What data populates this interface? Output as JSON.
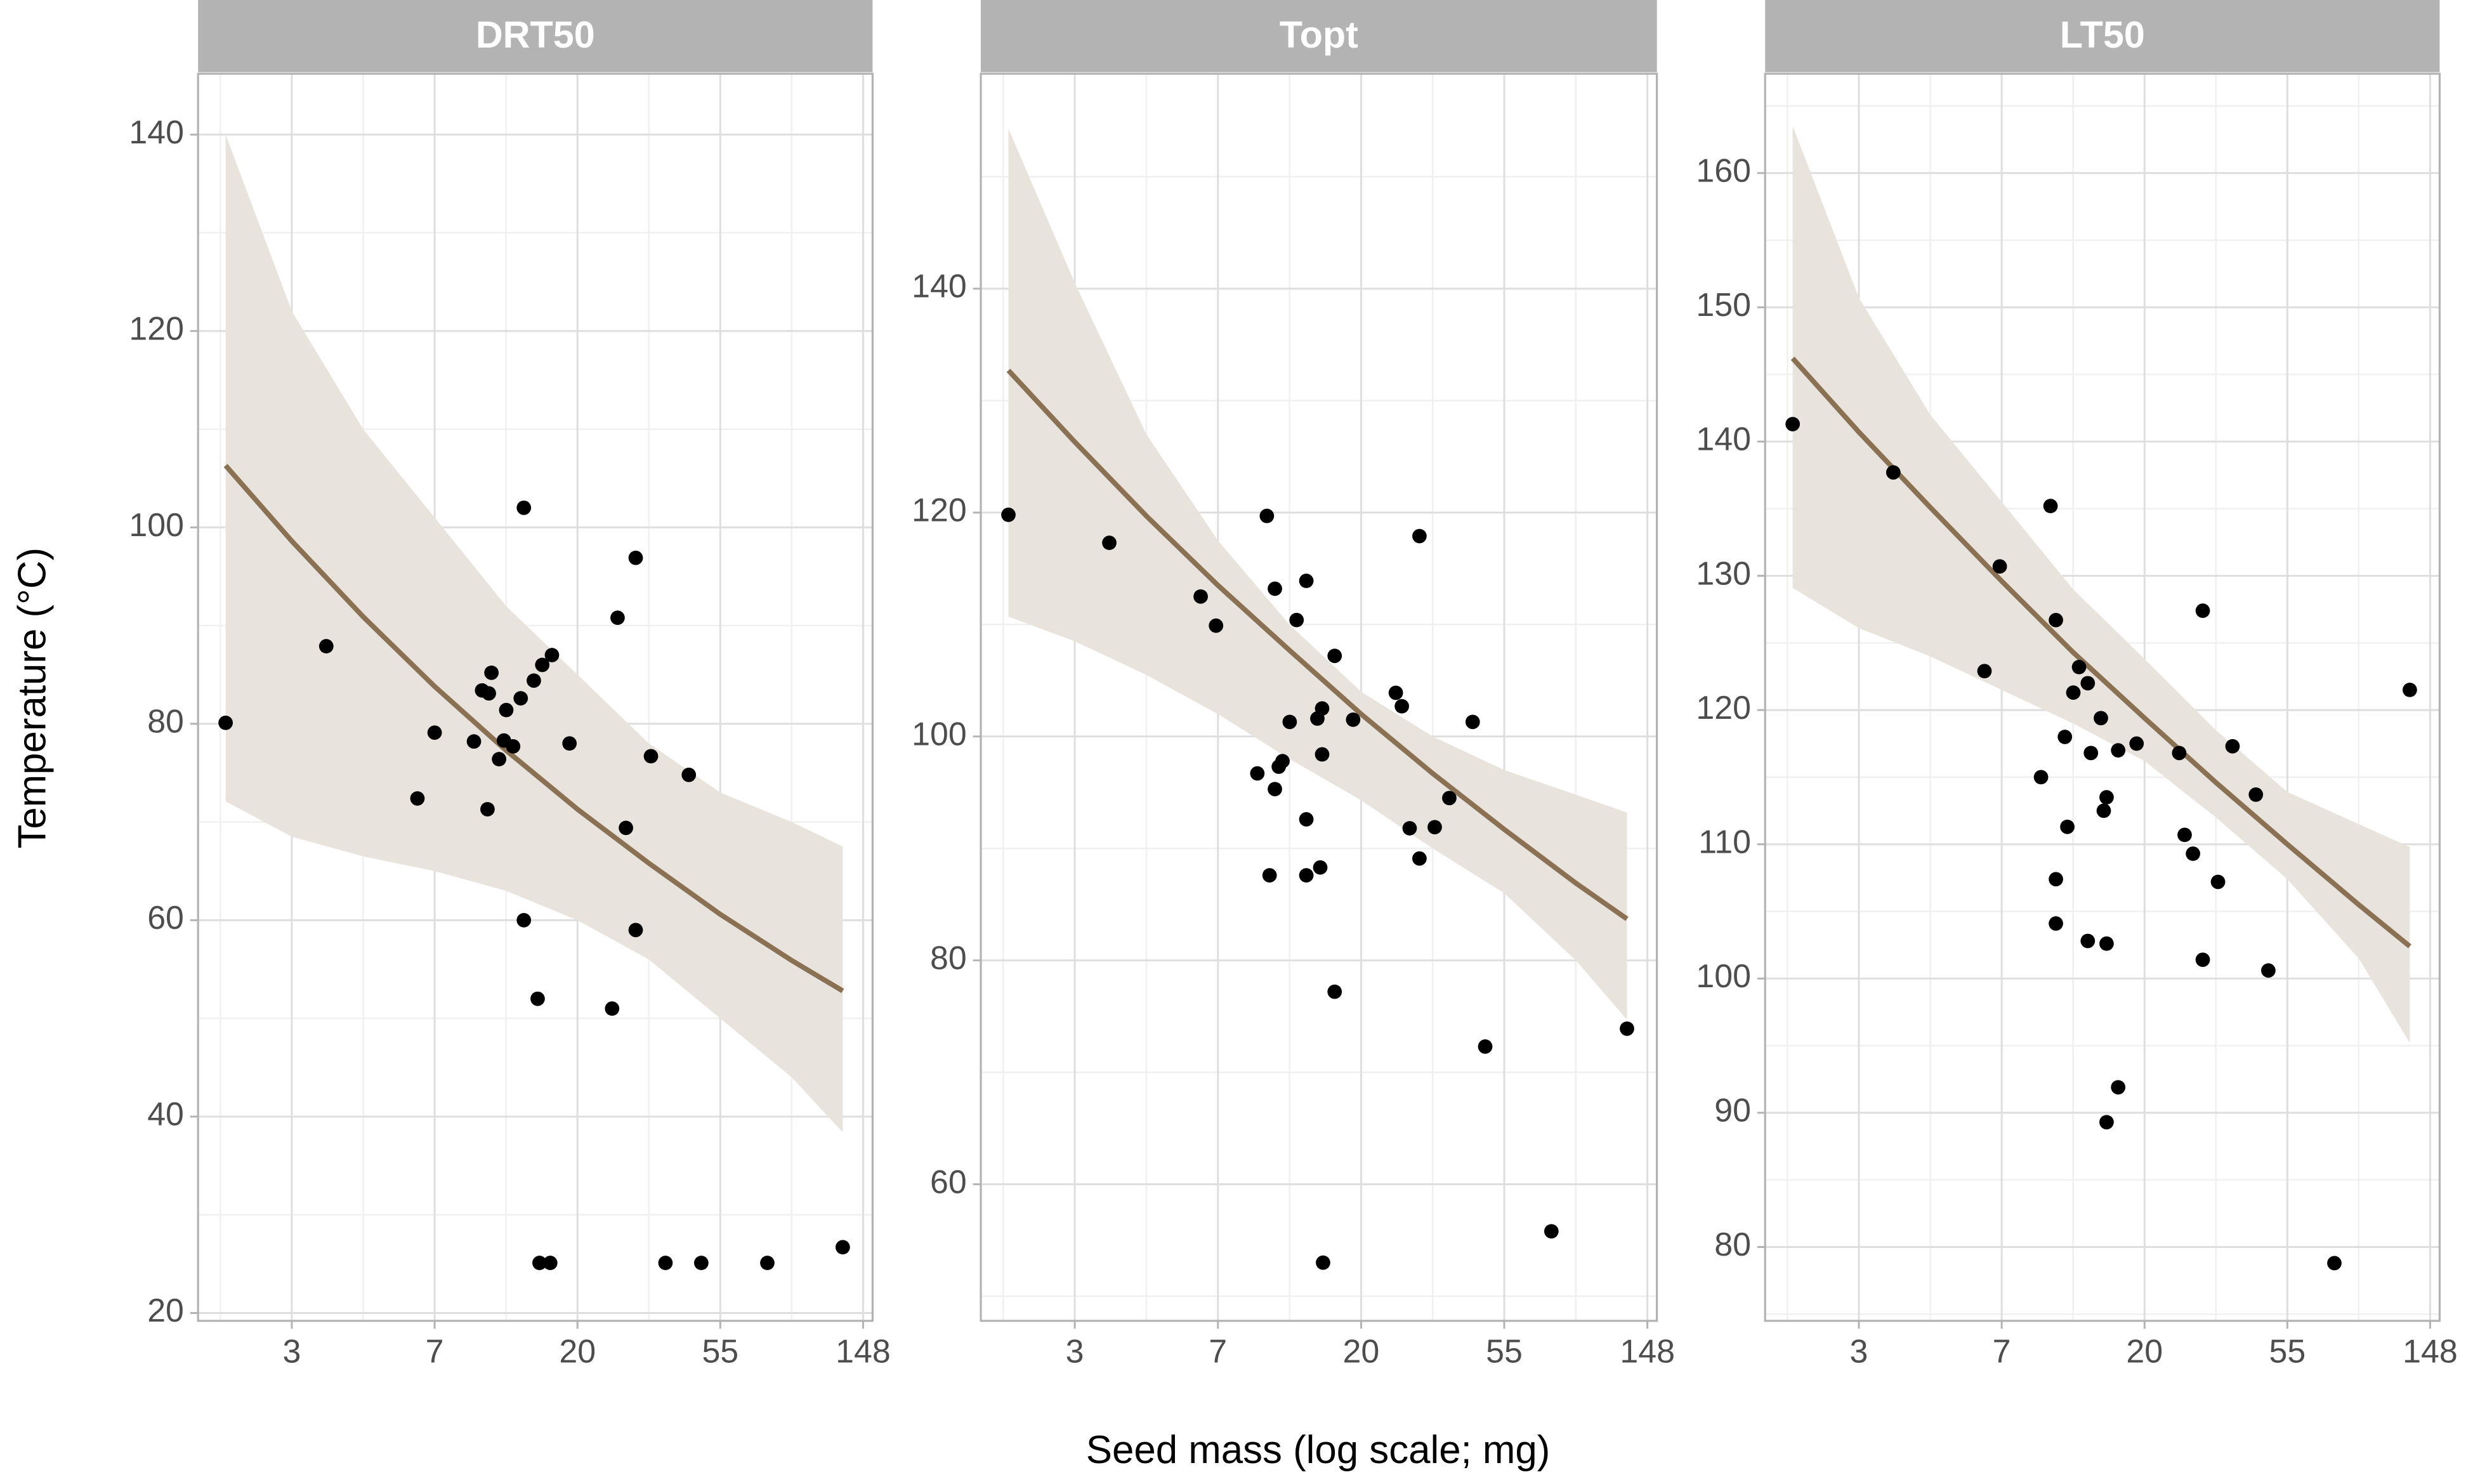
{
  "xlabel": "Seed mass (log scale; mg)",
  "ylabel": "Temperature (°C)",
  "chart_data": [
    {
      "type": "scatter",
      "title": "DRT50",
      "xscale": "log",
      "grid": true,
      "xlim": [
        1.41,
        158.6
      ],
      "xticks": [
        {
          "value": 2.718,
          "label": "3"
        },
        {
          "value": 7.389,
          "label": "7"
        },
        {
          "value": 20.09,
          "label": "20"
        },
        {
          "value": 54.6,
          "label": "55"
        },
        {
          "value": 148.4,
          "label": "148"
        }
      ],
      "ylim": [
        19.2,
        146.2
      ],
      "yticks": [
        20,
        40,
        60,
        80,
        100,
        120,
        140
      ],
      "series": [
        {
          "type": "scatter",
          "color": "#000000",
          "x": [
            1.71,
            3.46,
            6.55,
            7.39,
            9.73,
            10.3,
            10.8,
            11.0,
            10.7,
            11.6,
            12.0,
            12.2,
            12.8,
            13.5,
            13.8,
            13.8,
            14.8,
            15.7,
            15.2,
            15.4,
            16.8,
            16.6,
            19.0,
            25.6,
            26.6,
            28.2,
            30.2,
            30.2,
            33.6,
            37.2,
            43.8,
            47.8,
            75.9,
            128.7
          ],
          "values": [
            80.1,
            87.9,
            72.4,
            79.1,
            78.2,
            83.4,
            83.1,
            85.2,
            71.3,
            76.4,
            78.3,
            81.4,
            77.7,
            82.6,
            102.0,
            60.0,
            84.4,
            86.0,
            52.0,
            25.1,
            87.0,
            25.1,
            78.0,
            51.0,
            90.8,
            69.4,
            96.9,
            59.0,
            76.7,
            25.1,
            74.8,
            25.1,
            25.1,
            26.7
          ]
        },
        {
          "type": "line",
          "color": "#8a7153",
          "band_color": "#e8e3dd",
          "x": [
            1.71,
            2.72,
            4.48,
            7.39,
            12.18,
            20.09,
            33.12,
            54.6,
            90.02,
            128.7
          ],
          "values": [
            106.3,
            98.6,
            90.9,
            83.8,
            77.3,
            71.3,
            65.8,
            60.6,
            55.9,
            52.8
          ],
          "upper": [
            140,
            122,
            110,
            101,
            92,
            85,
            78,
            73,
            70,
            67.5
          ],
          "lower": [
            72.1,
            68.5,
            66.5,
            65,
            63,
            60,
            56,
            50,
            44,
            38.4
          ]
        }
      ]
    },
    {
      "type": "scatter",
      "title": "Topt",
      "xscale": "log",
      "grid": true,
      "xlim": [
        1.41,
        158.6
      ],
      "xticks": [
        {
          "value": 2.718,
          "label": "3"
        },
        {
          "value": 7.389,
          "label": "7"
        },
        {
          "value": 20.09,
          "label": "20"
        },
        {
          "value": 54.6,
          "label": "55"
        },
        {
          "value": 148.4,
          "label": "148"
        }
      ],
      "ylim": [
        47.8,
        159.2
      ],
      "yticks": [
        60,
        80,
        100,
        120,
        140
      ],
      "series": [
        {
          "type": "scatter",
          "color": "#000000",
          "x": [
            1.71,
            3.46,
            6.55,
            7.29,
            9.73,
            10.4,
            10.6,
            11.0,
            11.0,
            11.3,
            11.6,
            12.2,
            12.8,
            13.7,
            13.7,
            13.7,
            14.8,
            15.3,
            15.3,
            15.1,
            15.4,
            16.7,
            16.7,
            19.0,
            25.6,
            26.7,
            28.2,
            30.2,
            30.2,
            33.6,
            37.2,
            43.8,
            47.8,
            75.9,
            128.7
          ],
          "values": [
            119.8,
            117.3,
            112.5,
            109.9,
            96.7,
            119.7,
            87.6,
            95.3,
            113.2,
            97.3,
            97.8,
            101.3,
            110.4,
            113.9,
            92.6,
            87.6,
            101.6,
            102.5,
            98.4,
            88.3,
            53.0,
            107.2,
            77.2,
            101.5,
            103.9,
            102.7,
            91.8,
            117.9,
            89.1,
            91.9,
            94.5,
            101.3,
            72.3,
            55.8,
            73.9
          ]
        },
        {
          "type": "line",
          "color": "#8a7153",
          "band_color": "#e8e3dd",
          "x": [
            1.71,
            2.72,
            4.48,
            7.39,
            12.18,
            20.09,
            33.12,
            54.6,
            90.02,
            128.7
          ],
          "values": [
            132.7,
            126.3,
            119.7,
            113.5,
            107.7,
            102.0,
            96.7,
            91.7,
            86.9,
            83.7
          ],
          "upper": [
            154.3,
            140.5,
            127,
            117.5,
            110,
            104,
            100,
            97,
            94.8,
            93.2
          ],
          "lower": [
            110.7,
            108.5,
            105.5,
            102,
            98,
            94.3,
            90,
            86,
            80,
            74.7
          ]
        }
      ]
    },
    {
      "type": "scatter",
      "title": "LT50",
      "xscale": "log",
      "grid": true,
      "xlim": [
        1.41,
        158.6
      ],
      "xticks": [
        {
          "value": 2.718,
          "label": "3"
        },
        {
          "value": 7.389,
          "label": "7"
        },
        {
          "value": 20.09,
          "label": "20"
        },
        {
          "value": 54.6,
          "label": "55"
        },
        {
          "value": 148.4,
          "label": "148"
        }
      ],
      "ylim": [
        74.5,
        167.4
      ],
      "yticks": [
        80,
        90,
        100,
        110,
        120,
        130,
        140,
        150,
        160
      ],
      "series": [
        {
          "type": "scatter",
          "color": "#000000",
          "x": [
            1.71,
            3.46,
            6.55,
            7.29,
            9.73,
            10.4,
            10.8,
            10.8,
            10.8,
            11.5,
            11.7,
            12.2,
            12.7,
            13.5,
            13.8,
            13.5,
            14.8,
            15.1,
            15.4,
            15.4,
            15.4,
            16.7,
            16.7,
            19.0,
            25.6,
            26.6,
            28.2,
            30.2,
            30.2,
            33.6,
            37.2,
            43.8,
            47.8,
            75.9,
            128.7
          ],
          "values": [
            141.3,
            137.7,
            122.9,
            130.7,
            115.0,
            135.2,
            126.7,
            107.4,
            104.1,
            118.0,
            111.3,
            121.3,
            123.2,
            122.0,
            116.8,
            102.8,
            119.4,
            112.5,
            113.5,
            102.6,
            89.3,
            117.0,
            91.9,
            117.5,
            116.8,
            110.7,
            109.3,
            127.4,
            101.4,
            107.2,
            117.3,
            113.7,
            100.6,
            78.8,
            121.5
          ]
        },
        {
          "type": "line",
          "color": "#8a7153",
          "band_color": "#e8e3dd",
          "x": [
            1.71,
            2.72,
            4.48,
            7.39,
            12.18,
            20.09,
            33.12,
            54.6,
            90.02,
            128.7
          ],
          "values": [
            146.2,
            140.7,
            135.1,
            129.6,
            124.3,
            119.4,
            114.6,
            110.0,
            105.5,
            102.4
          ],
          "upper": [
            163.5,
            150.7,
            142,
            135.5,
            129,
            123.8,
            118.5,
            113.9,
            111.5,
            109.8
          ],
          "lower": [
            129.1,
            126.1,
            124,
            121.5,
            119,
            116.2,
            112,
            107.4,
            101.5,
            95.2
          ]
        }
      ]
    }
  ]
}
